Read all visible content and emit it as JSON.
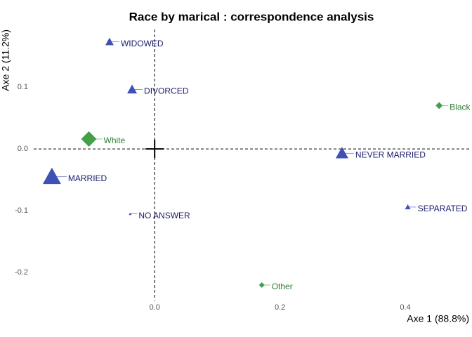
{
  "chart_data": {
    "type": "scatter",
    "title": "Race by marical : correspondence analysis",
    "xlabel": "Axe 1 (88.8%)",
    "ylabel": "Axe 2 (11.2%)",
    "xlim": [
      -0.193,
      0.502
    ],
    "ylim": [
      -0.245,
      0.193
    ],
    "xticks": [
      {
        "value": 0,
        "label": "0.0"
      },
      0.2,
      0.4
    ],
    "yticks": [
      -0.2,
      -0.1,
      {
        "value": 0,
        "label": "0.0"
      },
      0.1
    ],
    "grid": false,
    "series": [
      {
        "color": "#3f51b5",
        "label_color": "#1a1a6e",
        "marker": "triangle",
        "labels": [
          "WIDOWED",
          "DIVORCED",
          "MARRIED",
          "NO ANSWER",
          "NEVER MARRIED",
          "SEPARATED"
        ],
        "x": [
          -0.072,
          -0.036,
          -0.164,
          -0.039,
          0.299,
          0.404
        ],
        "values": [
          0.173,
          0.096,
          -0.045,
          -0.105,
          -0.007,
          -0.094
        ],
        "sizes": [
          6,
          7,
          13,
          2,
          9,
          4
        ]
      },
      {
        "color": "#43a047",
        "label_color": "#2e7d32",
        "marker": "diamond",
        "labels": [
          "White",
          "Black",
          "Other"
        ],
        "x": [
          -0.105,
          0.454,
          0.171
        ],
        "values": [
          0.016,
          0.07,
          -0.22
        ],
        "sizes": [
          11,
          5,
          4
        ]
      }
    ]
  }
}
